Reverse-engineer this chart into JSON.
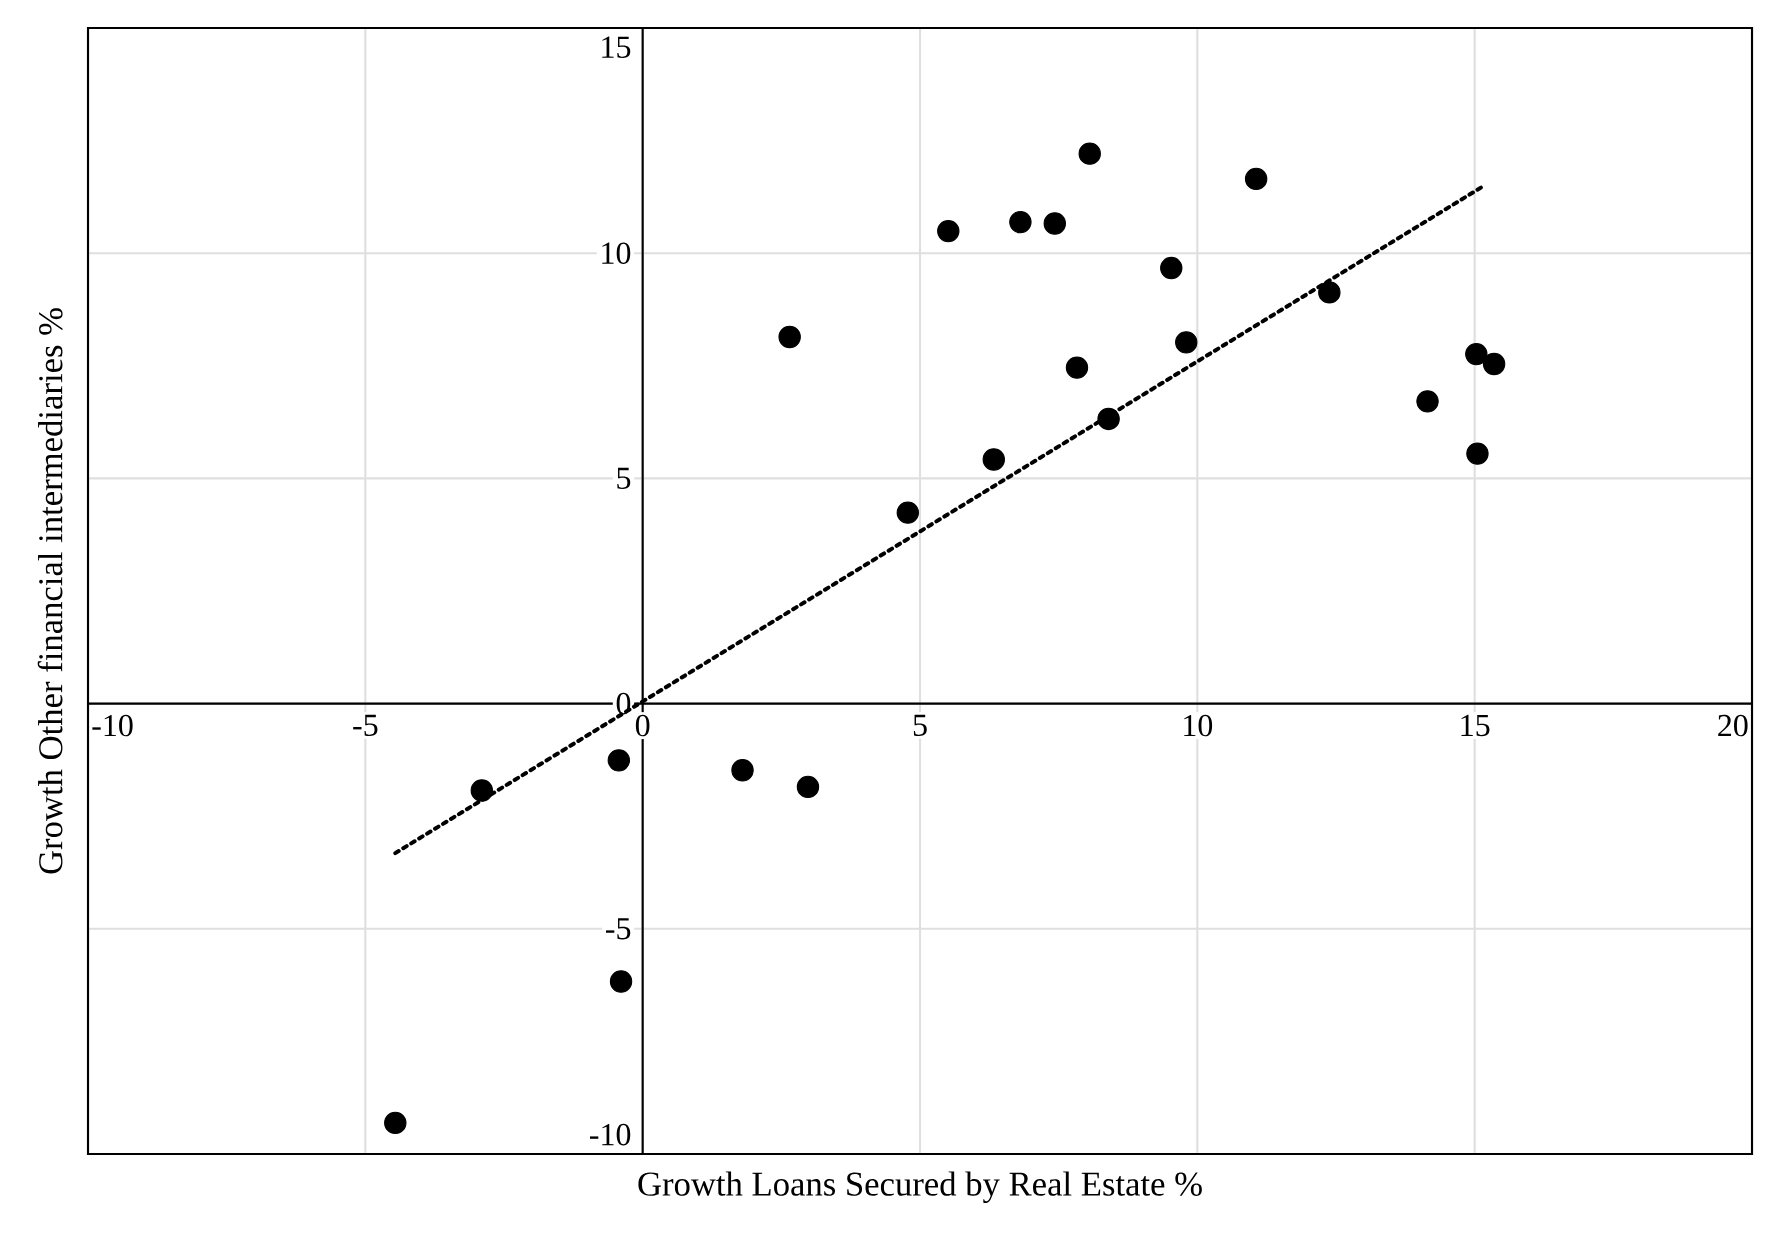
{
  "chart_data": {
    "type": "scatter",
    "xlabel": "Growth Loans Secured by Real Estate %",
    "ylabel": "Growth Other financial intermediaries %",
    "xlim": [
      -10,
      20
    ],
    "ylim": [
      -10,
      15
    ],
    "xticks": [
      -10,
      -5,
      0,
      5,
      10,
      15,
      20
    ],
    "yticks": [
      -10,
      -5,
      0,
      5,
      10,
      15
    ],
    "grid": true,
    "series": [
      {
        "color": "#000000",
        "marker": "circle",
        "x": [
          -4.46,
          -2.9,
          -0.43,
          -0.39,
          1.8,
          2.98,
          2.65,
          4.78,
          5.51,
          6.33,
          6.81,
          7.43,
          7.83,
          8.06,
          8.4,
          9.53,
          9.8,
          11.06,
          12.38,
          14.15,
          15.03,
          15.35,
          15.05
        ],
        "values": [
          -9.31,
          -1.93,
          -1.26,
          -6.17,
          -1.48,
          -1.85,
          8.14,
          4.24,
          10.49,
          5.42,
          10.69,
          10.66,
          7.46,
          12.21,
          6.32,
          9.67,
          8.02,
          11.65,
          9.13,
          6.71,
          7.76,
          7.54,
          5.55
        ]
      },
      {
        "type": "line",
        "color": "#000000",
        "marker": "none",
        "line_style": "dotted",
        "x": [
          -4.46,
          15.17
        ],
        "values": [
          -3.32,
          11.5
        ]
      }
    ]
  }
}
